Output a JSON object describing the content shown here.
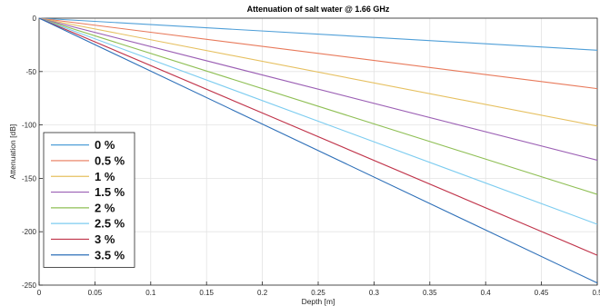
{
  "chart_data": {
    "type": "line",
    "title": "Attenuation of salt water @ 1.66 GHz",
    "xlabel": "Depth [m]",
    "ylabel": "Attenuation [dB]",
    "xlim": [
      0,
      0.5
    ],
    "ylim": [
      -250,
      0
    ],
    "x_ticks": [
      0,
      0.05,
      0.1,
      0.15,
      0.2,
      0.25,
      0.3,
      0.35,
      0.4,
      0.45,
      0.5
    ],
    "x_tick_labels": [
      "0",
      "0.05",
      "0.1",
      "0.15",
      "0.2",
      "0.25",
      "0.3",
      "0.35",
      "0.4",
      "0.45",
      "0.5"
    ],
    "y_ticks": [
      0,
      -50,
      -100,
      -150,
      -200,
      -250
    ],
    "y_tick_labels": [
      "0",
      "-50",
      "-100",
      "-150",
      "-200",
      "-250"
    ],
    "grid": true,
    "legend_position": "bottom-left",
    "x": [
      0,
      0.5
    ],
    "series": [
      {
        "name": "0 %",
        "color": "#4f9fd8",
        "values": [
          0,
          -30
        ]
      },
      {
        "name": "0.5 %",
        "color": "#e8795a",
        "values": [
          0,
          -66
        ]
      },
      {
        "name": "1 %",
        "color": "#e6c060",
        "values": [
          0,
          -101
        ]
      },
      {
        "name": "1.5 %",
        "color": "#9b5fb4",
        "values": [
          0,
          -133
        ]
      },
      {
        "name": "2 %",
        "color": "#8fbf55",
        "values": [
          0,
          -165
        ]
      },
      {
        "name": "2.5 %",
        "color": "#7cccf0",
        "values": [
          0,
          -193
        ]
      },
      {
        "name": "3 %",
        "color": "#c0344a",
        "values": [
          0,
          -222
        ]
      },
      {
        "name": "3.5 %",
        "color": "#2d6fb8",
        "values": [
          0,
          -248
        ]
      }
    ]
  }
}
